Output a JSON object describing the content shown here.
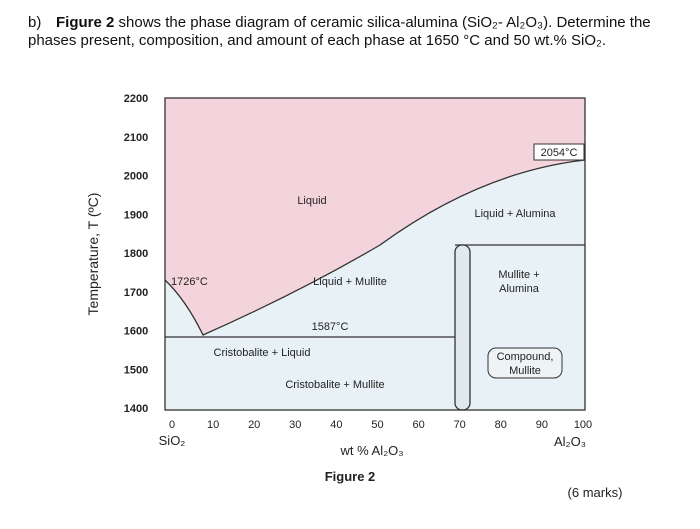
{
  "question": {
    "label": "b)",
    "figure_ref": "Figure 2",
    "text": "shows the phase diagram of ceramic silica-alumina (SiO₂- Al₂O₃). Determine the phases present, composition, and amount of each phase at 1650 °C and 50 wt.% SiO₂."
  },
  "figure": {
    "y_label": "Temperature, T (ºC)",
    "y_ticks": [
      "2200",
      "2100",
      "2000",
      "1900",
      "1800",
      "1700",
      "1600",
      "1500",
      "1400"
    ],
    "x_ticks": [
      "0",
      "10",
      "20",
      "30",
      "40",
      "50",
      "60",
      "70",
      "80",
      "90",
      "100"
    ],
    "x_left_end": "SiO₂",
    "x_right_end": "Al₂O₃",
    "x_label": "wt % Al₂O₃",
    "regions": {
      "liquid": "Liquid",
      "alumina_melt": "2054°C",
      "liquid_alumina": "Liquid + Alumina",
      "silica_melt": "1726°C",
      "liquid_mullite": "Liquid + Mullite",
      "mullite_alumina": [
        "Mullite +",
        "Alumina"
      ],
      "eutectic": "1587°C",
      "cristobalite_liquid": "Cristobalite + Liquid",
      "compound": [
        "Compound,",
        "Mullite"
      ],
      "cristobalite_mullite": "Cristobalite + Mullite"
    },
    "caption": "Figure 2"
  },
  "marks": "(6 marks)"
}
